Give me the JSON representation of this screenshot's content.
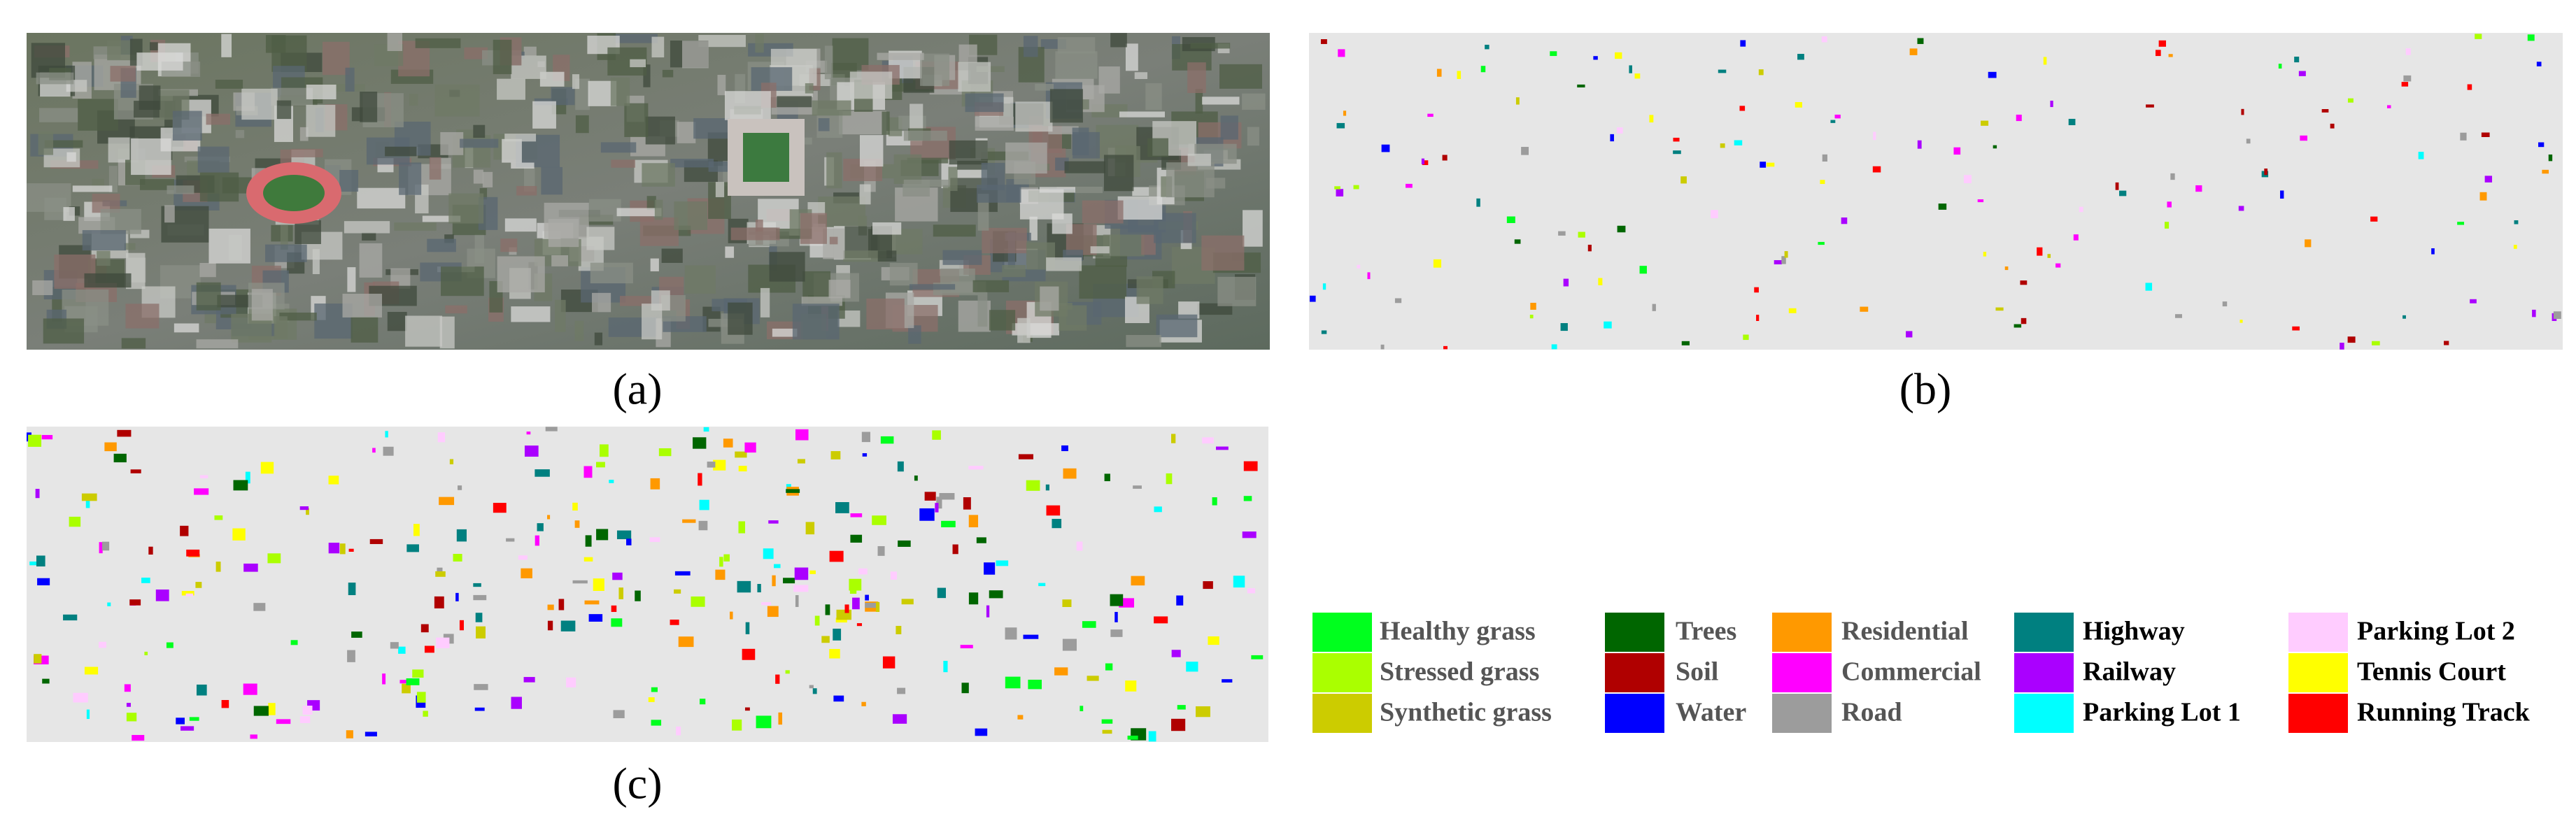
{
  "panels": [
    {
      "label": "(a)"
    },
    {
      "label": "(b)"
    },
    {
      "label": "(c)"
    }
  ],
  "legend": [
    {
      "name": "Healthy grass",
      "color": "#00ff1e"
    },
    {
      "name": "Stressed grass",
      "color": "#aaff00"
    },
    {
      "name": "Synthetic grass",
      "color": "#cccc00"
    },
    {
      "name": "Trees",
      "color": "#006600"
    },
    {
      "name": "Soil",
      "color": "#b00000"
    },
    {
      "name": "Water",
      "color": "#0000ff"
    },
    {
      "name": "Residential",
      "color": "#ff9900"
    },
    {
      "name": "Commercial",
      "color": "#ff00ff"
    },
    {
      "name": "Road",
      "color": "#9c9c9c"
    },
    {
      "name": "Highway",
      "color": "#008080"
    },
    {
      "name": "Railway",
      "color": "#aa00ff"
    },
    {
      "name": "Parking Lot 1",
      "color": "#00ffff"
    },
    {
      "name": "Parking Lot 2",
      "color": "#ffccff"
    },
    {
      "name": "Tennis Court",
      "color": "#ffff00"
    },
    {
      "name": "Running Track",
      "color": "#ff0000"
    }
  ]
}
